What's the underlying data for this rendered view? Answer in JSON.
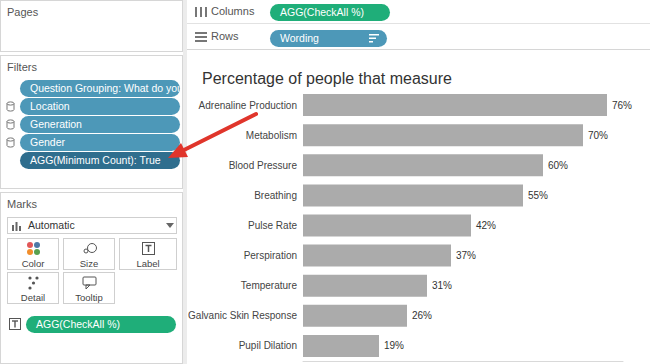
{
  "shelves": {
    "columns": {
      "label": "Columns",
      "pills": [
        "AGG(CheckAll %)"
      ]
    },
    "rows": {
      "label": "Rows",
      "pills": [
        "Wording"
      ]
    }
  },
  "pages": {
    "title": "Pages"
  },
  "filters": {
    "title": "Filters",
    "items": [
      "Question Grouping: What do you ...",
      "Location",
      "Generation",
      "Gender",
      "AGG(Minimum Count): True"
    ]
  },
  "marks": {
    "title": "Marks",
    "mark_type": "Automatic",
    "buttons": [
      "Color",
      "Size",
      "Label",
      "Detail",
      "Tooltip"
    ],
    "pills": [
      "AGG(CheckAll %)"
    ]
  },
  "chart_data": {
    "type": "bar",
    "title": "Percentage of people that measure",
    "orientation": "horizontal",
    "categories": [
      "Adrenaline Production",
      "Metabolism",
      "Blood Pressure",
      "Breathing",
      "Pulse Rate",
      "Perspiration",
      "Temperature",
      "Galvanic Skin Response",
      "Pupil Dilation"
    ],
    "values": [
      76,
      70,
      60,
      55,
      42,
      37,
      31,
      26,
      19
    ],
    "value_labels": [
      "76%",
      "70%",
      "60%",
      "55%",
      "42%",
      "37%",
      "31%",
      "26%",
      "19%"
    ],
    "color": "#ababab",
    "xlim": [
      0,
      80
    ],
    "data_labels": true,
    "tick_labels": "y",
    "grid": false
  }
}
